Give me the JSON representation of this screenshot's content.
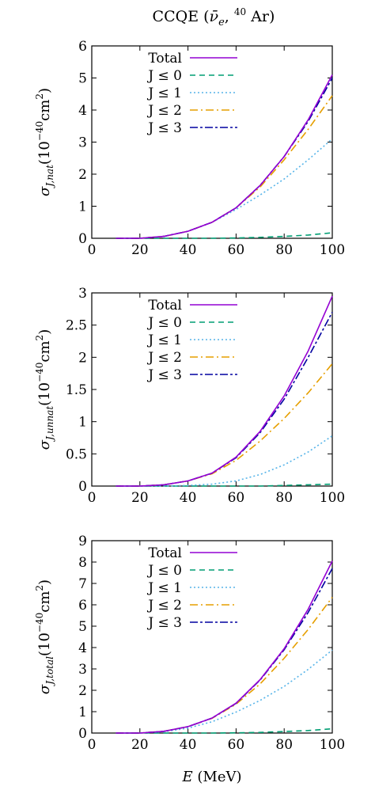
{
  "figure": {
    "title": "CCQE (ν̄e, 40 Ar)",
    "title_parts": {
      "main": "CCQE (",
      "nu": "ν̄",
      "sub_e": "e",
      "comma": ", ",
      "sup": "40",
      "ar": " Ar)"
    },
    "xlabel": "E (MeV)",
    "xlabel_parts": {
      "var": "E",
      "unit": " (MeV)"
    }
  },
  "chart_data": [
    {
      "type": "line",
      "ylabel": "σJ,nat(10−40cm2)",
      "ylabel_parts": {
        "sub": "J,nat"
      },
      "xlim": [
        0,
        100
      ],
      "ylim": [
        0,
        6
      ],
      "xticks": [
        "0",
        "20",
        "40",
        "60",
        "80",
        "100"
      ],
      "yticks": [
        "0",
        "1",
        "2",
        "3",
        "4",
        "5",
        "6"
      ],
      "x": [
        10,
        20,
        30,
        40,
        50,
        60,
        70,
        80,
        90,
        100
      ],
      "series": [
        {
          "name": "Total",
          "values": [
            0.0,
            0.0,
            0.06,
            0.22,
            0.5,
            0.95,
            1.65,
            2.55,
            3.7,
            5.1
          ]
        },
        {
          "name": "J ≤ 0",
          "values": [
            0.0,
            0.0,
            0.0,
            0.0,
            0.0,
            0.01,
            0.03,
            0.06,
            0.1,
            0.17
          ]
        },
        {
          "name": "J ≤ 1",
          "values": [
            0.0,
            0.0,
            0.06,
            0.22,
            0.5,
            0.9,
            1.35,
            1.85,
            2.45,
            3.1
          ]
        },
        {
          "name": "J ≤ 2",
          "values": [
            0.0,
            0.0,
            0.06,
            0.22,
            0.5,
            0.95,
            1.6,
            2.45,
            3.4,
            4.45
          ]
        },
        {
          "name": "J ≤ 3",
          "values": [
            0.0,
            0.0,
            0.06,
            0.22,
            0.5,
            0.95,
            1.65,
            2.55,
            3.65,
            5.0
          ]
        }
      ],
      "legend_labels": [
        "Total",
        "J ≤ 0",
        "J ≤ 1",
        "J ≤ 2",
        "J ≤ 3"
      ],
      "legend_position": "top-left"
    },
    {
      "type": "line",
      "ylabel": "σJ,unnat(10−40cm2)",
      "ylabel_parts": {
        "sub": "J,unnat"
      },
      "xlim": [
        0,
        100
      ],
      "ylim": [
        0,
        3
      ],
      "xticks": [
        "0",
        "20",
        "40",
        "60",
        "80",
        "100"
      ],
      "yticks": [
        "0",
        "0.5",
        "1",
        "1.5",
        "2",
        "2.5",
        "3"
      ],
      "x": [
        10,
        20,
        30,
        40,
        50,
        60,
        70,
        80,
        90,
        100
      ],
      "series": [
        {
          "name": "Total",
          "values": [
            0.0,
            0.0,
            0.02,
            0.08,
            0.2,
            0.45,
            0.85,
            1.4,
            2.1,
            2.95
          ]
        },
        {
          "name": "J ≤ 0",
          "values": [
            0.0,
            0.0,
            0.0,
            0.0,
            0.0,
            0.0,
            0.0,
            0.01,
            0.02,
            0.03
          ]
        },
        {
          "name": "J ≤ 1",
          "values": [
            0.0,
            0.0,
            0.0,
            0.01,
            0.03,
            0.08,
            0.18,
            0.33,
            0.53,
            0.78
          ]
        },
        {
          "name": "J ≤ 2",
          "values": [
            0.0,
            0.0,
            0.02,
            0.08,
            0.19,
            0.4,
            0.7,
            1.05,
            1.45,
            1.9
          ]
        },
        {
          "name": "J ≤ 3",
          "values": [
            0.0,
            0.0,
            0.02,
            0.08,
            0.2,
            0.44,
            0.83,
            1.35,
            2.0,
            2.7
          ]
        }
      ],
      "legend_labels": [
        "Total",
        "J ≤ 0",
        "J ≤ 1",
        "J ≤ 2",
        "J ≤ 3"
      ],
      "legend_position": "top-left"
    },
    {
      "type": "line",
      "ylabel": "σJ,total(10−40cm2)",
      "ylabel_parts": {
        "sub": "J,total"
      },
      "xlim": [
        0,
        100
      ],
      "ylim": [
        0,
        9
      ],
      "xticks": [
        "0",
        "20",
        "40",
        "60",
        "80",
        "100"
      ],
      "yticks": [
        "0",
        "1",
        "2",
        "3",
        "4",
        "5",
        "6",
        "7",
        "8",
        "9"
      ],
      "x": [
        10,
        20,
        30,
        40,
        50,
        60,
        70,
        80,
        90,
        100
      ],
      "series": [
        {
          "name": "Total",
          "values": [
            0.0,
            0.0,
            0.08,
            0.3,
            0.7,
            1.4,
            2.5,
            3.95,
            5.8,
            8.05
          ]
        },
        {
          "name": "J ≤ 0",
          "values": [
            0.0,
            0.0,
            0.0,
            0.0,
            0.0,
            0.01,
            0.03,
            0.07,
            0.12,
            0.2
          ]
        },
        {
          "name": "J ≤ 1",
          "values": [
            0.0,
            0.0,
            0.06,
            0.23,
            0.53,
            0.98,
            1.53,
            2.18,
            2.98,
            3.88
          ]
        },
        {
          "name": "J ≤ 2",
          "values": [
            0.0,
            0.0,
            0.08,
            0.3,
            0.69,
            1.35,
            2.3,
            3.5,
            4.85,
            6.35
          ]
        },
        {
          "name": "J ≤ 3",
          "values": [
            0.0,
            0.0,
            0.08,
            0.3,
            0.7,
            1.39,
            2.48,
            3.9,
            5.65,
            7.7
          ]
        }
      ],
      "legend_labels": [
        "Total",
        "J ≤ 0",
        "J ≤ 1",
        "J ≤ 2",
        "J ≤ 3"
      ],
      "legend_position": "top-left"
    }
  ],
  "colors": {
    "Total": "#9400d3",
    "J ≤ 0": "#009e73",
    "J ≤ 1": "#56b4e9",
    "J ≤ 2": "#e69f00",
    "J ≤ 3": "#0000a0"
  }
}
